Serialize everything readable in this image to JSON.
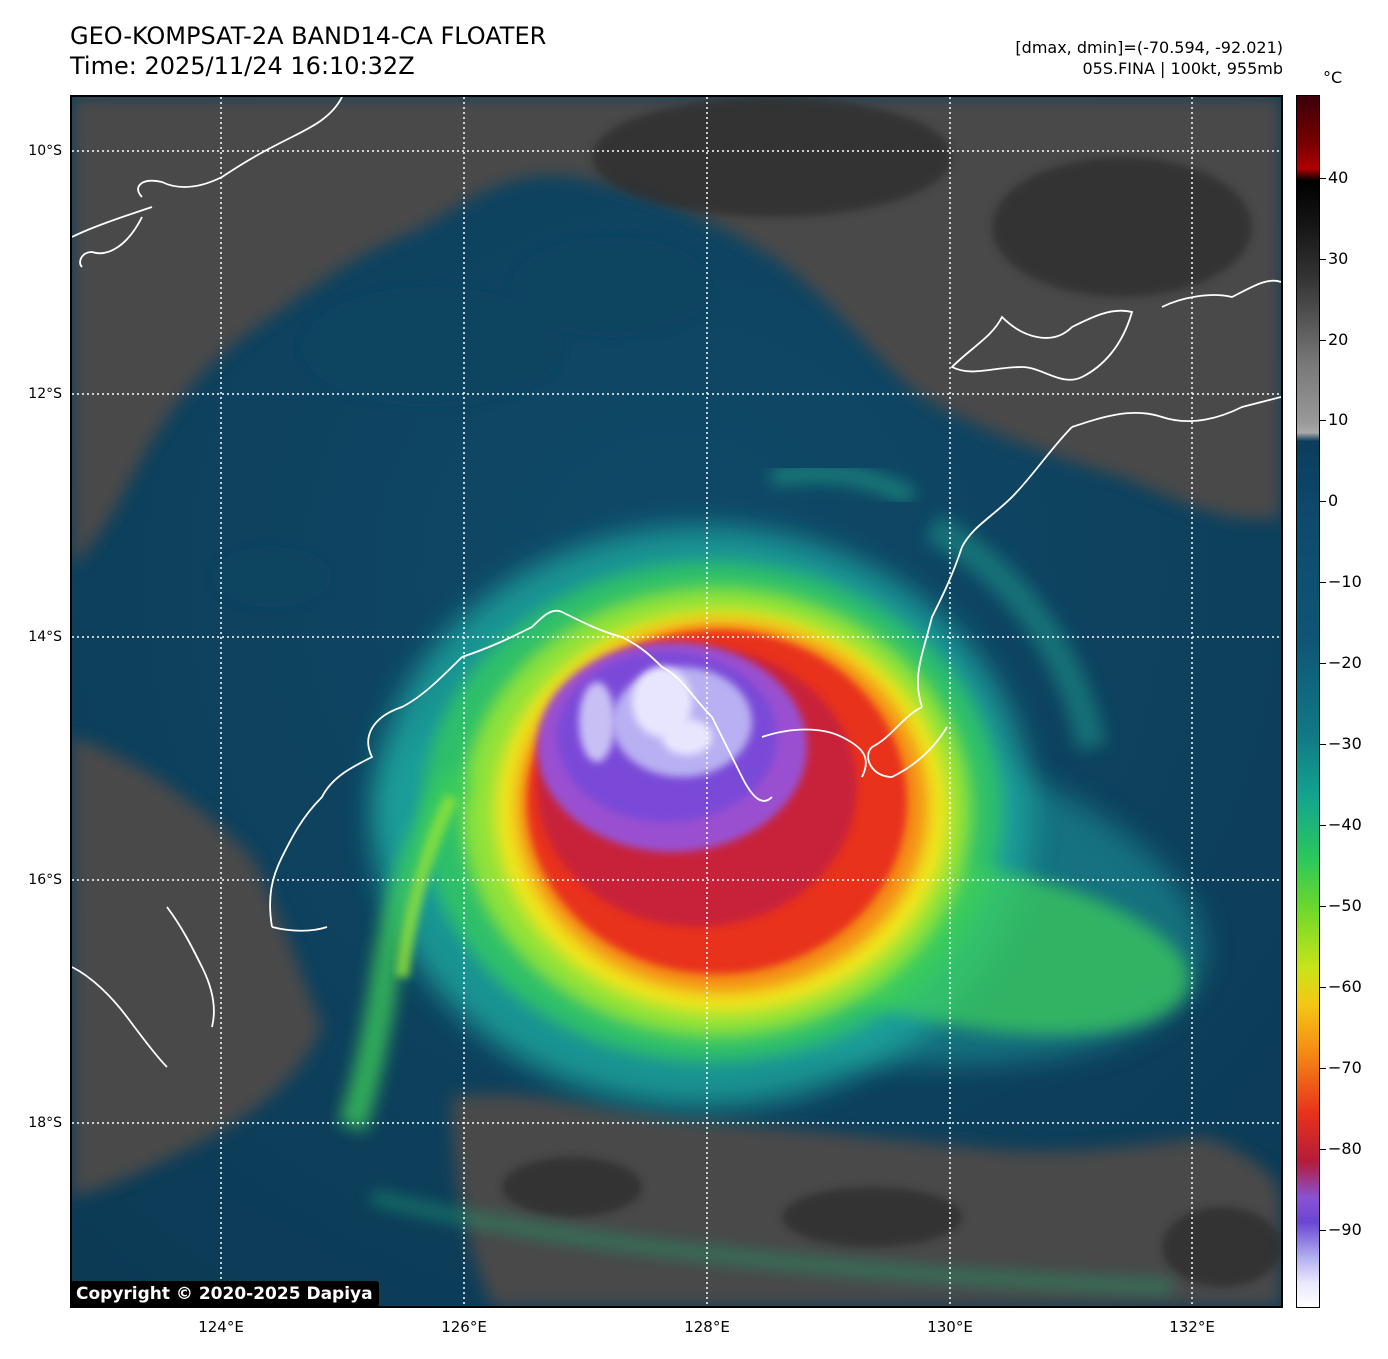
{
  "header": {
    "title_line1": "GEO-KOMPSAT-2A BAND14-CA FLOATER",
    "title_line2": "Time: 2025/11/24 16:10:32Z",
    "stats_line": "[dmax, dmin]=(-70.594, -92.021)",
    "storm_line": "05S.FINA | 100kt, 955mb"
  },
  "map": {
    "lat_labels": [
      "10°S",
      "12°S",
      "14°S",
      "16°S",
      "18°S"
    ],
    "lon_labels": [
      "124°E",
      "126°E",
      "128°E",
      "130°E",
      "132°E"
    ],
    "storm_center_icon": "tropical-cyclone-cloud-imagery",
    "coastline_color": "#ffffff",
    "gridline_color": "#ffffff"
  },
  "colorbar": {
    "unit": "°C",
    "ticks": [
      "40",
      "30",
      "20",
      "10",
      "0",
      "−10",
      "−20",
      "−30",
      "−40",
      "−50",
      "−60",
      "−70",
      "−80",
      "−90"
    ]
  },
  "copyright": "Copyright © 2020-2025 Dapiya"
}
